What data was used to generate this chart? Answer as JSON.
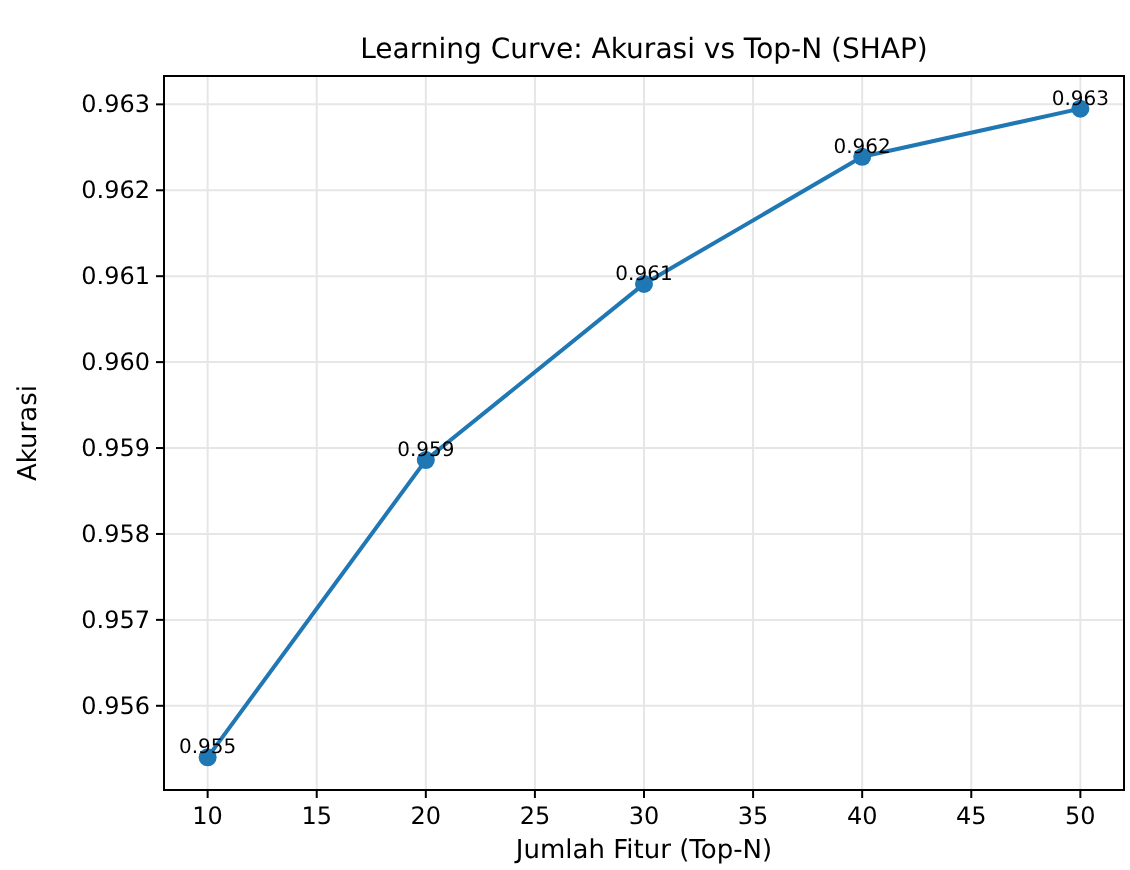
{
  "chart_data": {
    "type": "line",
    "title": "Learning Curve: Akurasi vs Top-N (SHAP)",
    "xlabel": "Jumlah Fitur (Top-N)",
    "ylabel": "Akurasi",
    "x": [
      10,
      20,
      30,
      40,
      50
    ],
    "series": [
      {
        "color": "#1f77b4",
        "values": [
          0.9554,
          0.95886,
          0.96091,
          0.96239,
          0.96295
        ],
        "value_labels": [
          "0.955",
          "0.959",
          "0.961",
          "0.962",
          "0.963"
        ]
      }
    ],
    "xlim": [
      8,
      52
    ],
    "xticks": [
      10,
      15,
      20,
      25,
      30,
      35,
      40,
      45,
      50
    ],
    "ylim": [
      0.95502,
      0.96333
    ],
    "yticks": [
      {
        "value": 0.956,
        "label": "0.956"
      },
      {
        "value": 0.957,
        "label": "0.957"
      },
      {
        "value": 0.958,
        "label": "0.958"
      },
      {
        "value": 0.959,
        "label": "0.959"
      },
      {
        "value": 0.96,
        "label": "0.960"
      },
      {
        "value": 0.961,
        "label": "0.961"
      },
      {
        "value": 0.962,
        "label": "0.962"
      },
      {
        "value": 0.963,
        "label": "0.963"
      }
    ],
    "grid": true,
    "marker": "circle",
    "line_style": "solid"
  }
}
